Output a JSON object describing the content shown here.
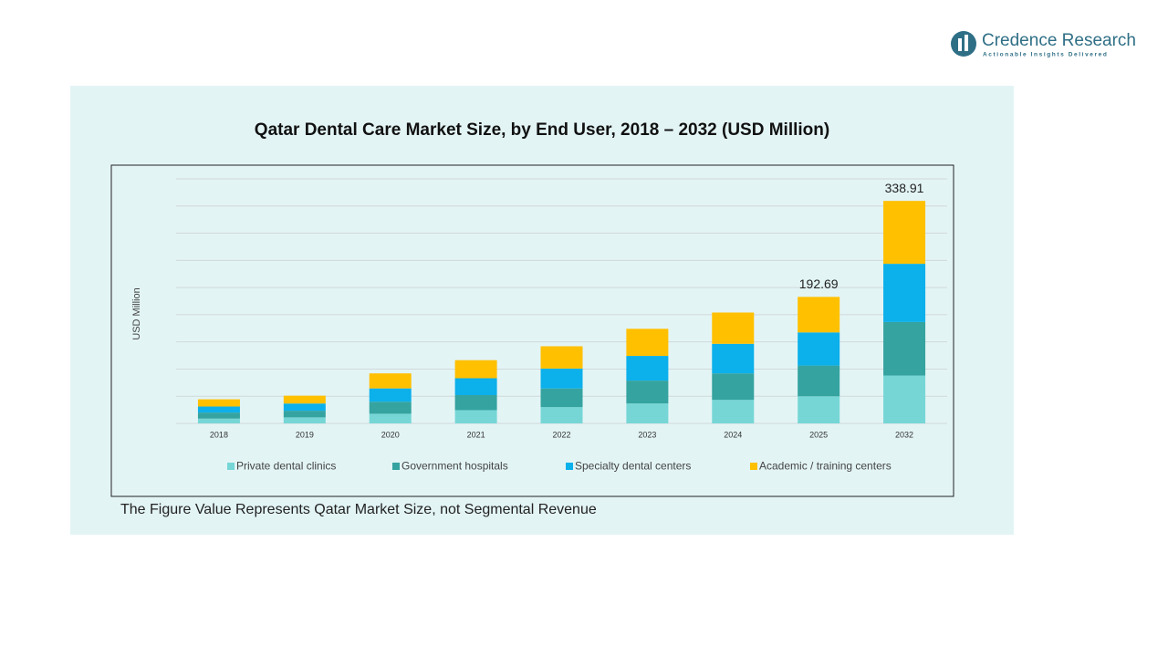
{
  "brand": {
    "name": "Credence Research",
    "tagline": "Actionable Insights Delivered"
  },
  "note": "The Figure Value Represents Qatar Market Size, not Segmental Revenue",
  "chart_data": {
    "type": "stacked_bar",
    "title": "Qatar Dental Care Market Size, by End User, 2018 – 2032 (USD Million)",
    "y_label": "USD Million",
    "categories": [
      "2018",
      "2019",
      "2020",
      "2021",
      "2022",
      "2023",
      "2024",
      "2025",
      "2032"
    ],
    "series": [
      {
        "name": "Private dental clinics",
        "color": "#76d6d6",
        "values": [
          7.3,
          9.2,
          14.7,
          20.2,
          24.8,
          30.3,
          35.8,
          41.3,
          72.9
        ]
      },
      {
        "name": "Government hospitals",
        "color": "#35a3a0",
        "values": [
          9.2,
          10.1,
          18.4,
          22.9,
          28.4,
          34.9,
          40.4,
          46.8,
          81.5
        ]
      },
      {
        "name": "Specialty dental centers",
        "color": "#0cb0ea",
        "values": [
          9.2,
          11.0,
          20.2,
          25.7,
          30.3,
          37.6,
          45.0,
          50.5,
          88.7
        ]
      },
      {
        "name": "Academic / training centers",
        "color": "#ffc000",
        "values": [
          11.0,
          11.9,
          22.9,
          27.5,
          34.0,
          41.3,
          47.7,
          54.1,
          95.8
        ]
      }
    ],
    "totals": [
      null,
      null,
      null,
      null,
      null,
      null,
      null,
      192.69,
      338.91
    ],
    "ylim": [
      0,
      360
    ],
    "grid": true,
    "legend": "bottom"
  }
}
